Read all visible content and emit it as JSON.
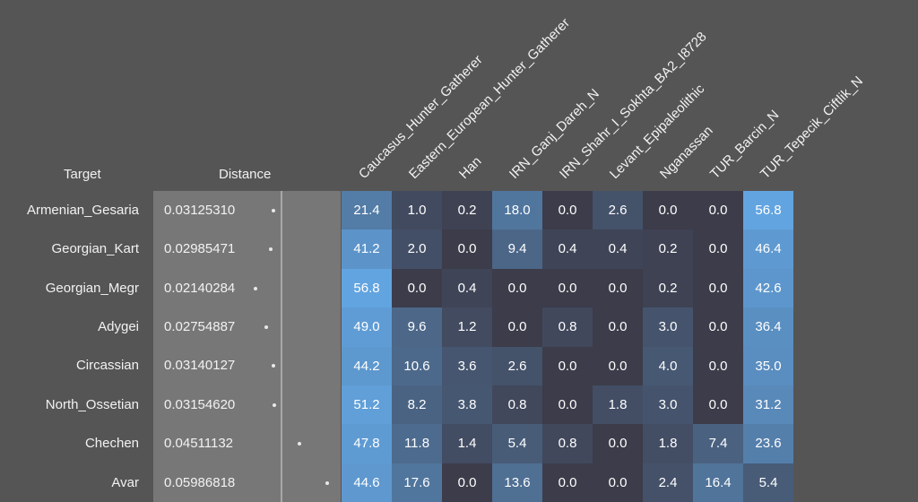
{
  "headers": {
    "target": "Target",
    "distance": "Distance"
  },
  "columns": [
    "Caucasus_Hunter_Gatherer",
    "Eastern_European_Hunter_Gatherer",
    "Han",
    "IRN_Ganj_Dareh_N",
    "IRN_Shahr_I_Sokhta_BA2_I8728",
    "Levant_Epipaleolithic",
    "Nganassan",
    "TUR_Barcin_N",
    "TUR_Tepecik_Ciftlik_N"
  ],
  "rows": [
    {
      "target": "Armenian_Gesaria",
      "distance": "0.03125310",
      "values": [
        "21.4",
        "1.0",
        "0.2",
        "18.0",
        "0.0",
        "2.6",
        "0.0",
        "0.0",
        "56.8"
      ]
    },
    {
      "target": "Georgian_Kart",
      "distance": "0.02985471",
      "values": [
        "41.2",
        "2.0",
        "0.0",
        "9.4",
        "0.4",
        "0.4",
        "0.2",
        "0.0",
        "46.4"
      ]
    },
    {
      "target": "Georgian_Megr",
      "distance": "0.02140284",
      "values": [
        "56.8",
        "0.0",
        "0.4",
        "0.0",
        "0.0",
        "0.0",
        "0.2",
        "0.0",
        "42.6"
      ]
    },
    {
      "target": "Adygei",
      "distance": "0.02754887",
      "values": [
        "49.0",
        "9.6",
        "1.2",
        "0.0",
        "0.8",
        "0.0",
        "3.0",
        "0.0",
        "36.4"
      ]
    },
    {
      "target": "Circassian",
      "distance": "0.03140127",
      "values": [
        "44.2",
        "10.6",
        "3.6",
        "2.6",
        "0.0",
        "0.0",
        "4.0",
        "0.0",
        "35.0"
      ]
    },
    {
      "target": "North_Ossetian",
      "distance": "0.03154620",
      "values": [
        "51.2",
        "8.2",
        "3.8",
        "0.8",
        "0.0",
        "1.8",
        "3.0",
        "0.0",
        "31.2"
      ]
    },
    {
      "target": "Chechen",
      "distance": "0.04511132",
      "values": [
        "47.8",
        "11.8",
        "1.4",
        "5.4",
        "0.8",
        "0.0",
        "1.8",
        "7.4",
        "23.6"
      ]
    },
    {
      "target": "Avar",
      "distance": "0.05986818",
      "values": [
        "44.6",
        "17.6",
        "0.0",
        "13.6",
        "0.0",
        "0.0",
        "2.4",
        "16.4",
        "5.4"
      ]
    }
  ],
  "colors": {
    "background": "#555555",
    "distance_panel": "#777777",
    "heat_low": "#3c3c4a",
    "heat_high": "#62a4e0"
  }
}
